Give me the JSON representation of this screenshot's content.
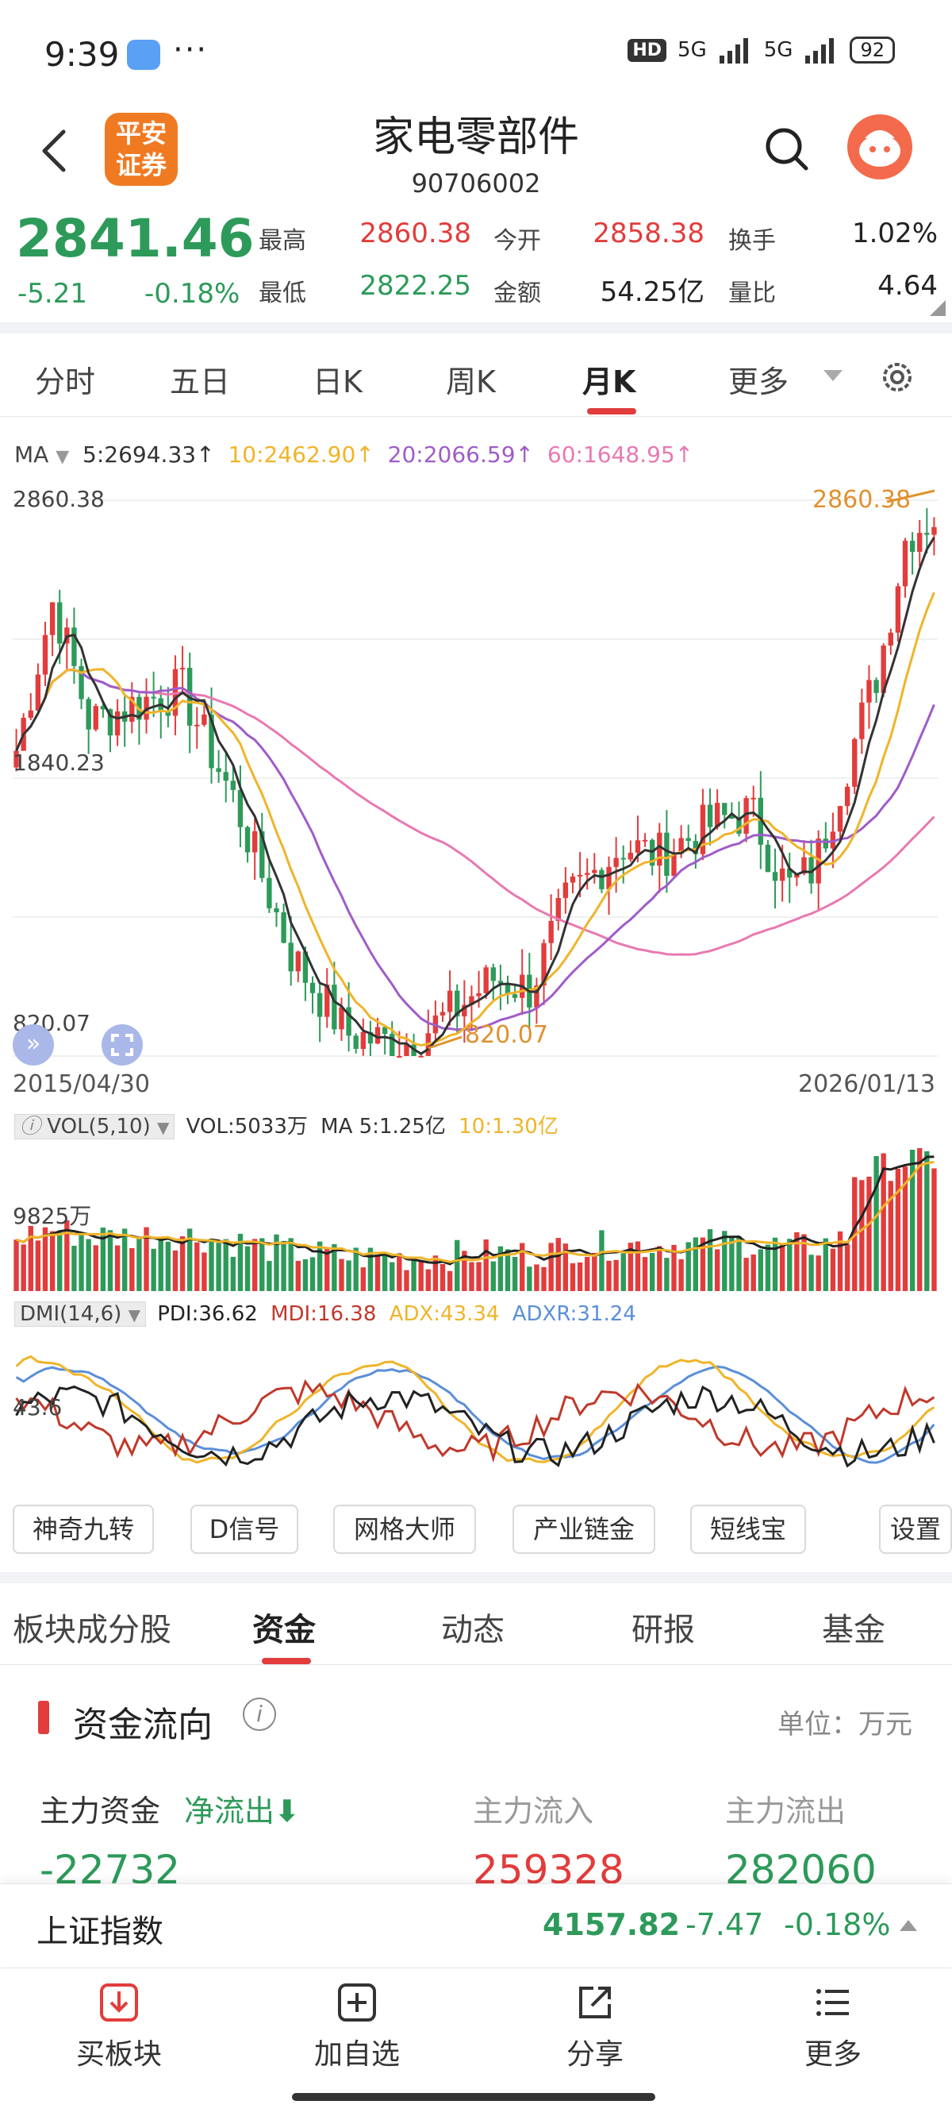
{
  "status_bar": {
    "time": "9:39",
    "dots": "···",
    "hd": "HD",
    "net1": "5G",
    "net2": "5G",
    "battery": "92"
  },
  "header": {
    "logo_line1": "平安",
    "logo_line2": "证券",
    "title": "家电零部件",
    "code": "90706002"
  },
  "quote": {
    "price": "2841.46",
    "change": "-5.21",
    "change_pct": "-0.18%",
    "fields": [
      {
        "label": "最高",
        "value": "2860.38",
        "color": "#e23c3c"
      },
      {
        "label": "今开",
        "value": "2858.38",
        "color": "#e23c3c"
      },
      {
        "label": "换手",
        "value": "1.02%",
        "color": "#222222"
      },
      {
        "label": "最低",
        "value": "2822.25",
        "color": "#2d9a5a"
      },
      {
        "label": "金额",
        "value": "54.25亿",
        "color": "#222222"
      },
      {
        "label": "量比",
        "value": "4.64",
        "color": "#222222"
      }
    ]
  },
  "tabs": [
    "分时",
    "五日",
    "日K",
    "周K",
    "月K",
    "更多"
  ],
  "active_tab": "月K",
  "ma_legend": {
    "label": "MA",
    "items": [
      {
        "text": "5:2694.33↑",
        "color": "#333333"
      },
      {
        "text": "10:2462.90↑",
        "color": "#f0b429"
      },
      {
        "text": "20:2066.59↑",
        "color": "#a05cc8"
      },
      {
        "text": "60:1648.95↑",
        "color": "#e879b2"
      }
    ]
  },
  "chart_data": {
    "type": "candlestick",
    "price_high_label": "2860.38",
    "price_mid_label": "1840.23",
    "price_low_label": "820.07",
    "max_marker": "2860.38",
    "min_marker": "820.07",
    "x_start": "2015/04/30",
    "x_end": "2026/01/13",
    "ylim": [
      820.07,
      2860.38
    ],
    "volume_legend": {
      "indicator": "VOL(5,10)",
      "vol": "VOL:5033万",
      "ma5": "MA 5:1.25亿",
      "ma10": "10:1.30亿"
    },
    "volume_axis_label": "9825万",
    "dmi_legend": {
      "indicator": "DMI(14,6)",
      "pdi": "PDI:36.62",
      "mdi": "MDI:16.38",
      "adx": "ADX:43.34",
      "adxr": "ADXR:31.24"
    },
    "dmi_axis_label": "43.6"
  },
  "tools": [
    "神奇九转",
    "D信号",
    "网格大师",
    "产业链金",
    "短线宝",
    "设置"
  ],
  "sub_tabs": [
    "板块成分股",
    "资金",
    "动态",
    "研报",
    "基金"
  ],
  "active_sub_tab": "资金",
  "fund_flow": {
    "title": "资金流向",
    "unit": "单位：万元",
    "main_label": "主力资金",
    "net_label": "净流出",
    "inflow_label": "主力流入",
    "outflow_label": "主力流出",
    "main_value": "-22732",
    "inflow_value": "259328",
    "outflow_value": "282060"
  },
  "index_bar": {
    "name": "上证指数",
    "value": "4157.82",
    "change": "-7.47",
    "change_pct": "-0.18%"
  },
  "bottom_nav": [
    {
      "label": "买板块",
      "icon": "buy-sector-icon"
    },
    {
      "label": "加自选",
      "icon": "add-watchlist-icon"
    },
    {
      "label": "分享",
      "icon": "share-icon"
    },
    {
      "label": "更多",
      "icon": "more-menu-icon"
    }
  ]
}
